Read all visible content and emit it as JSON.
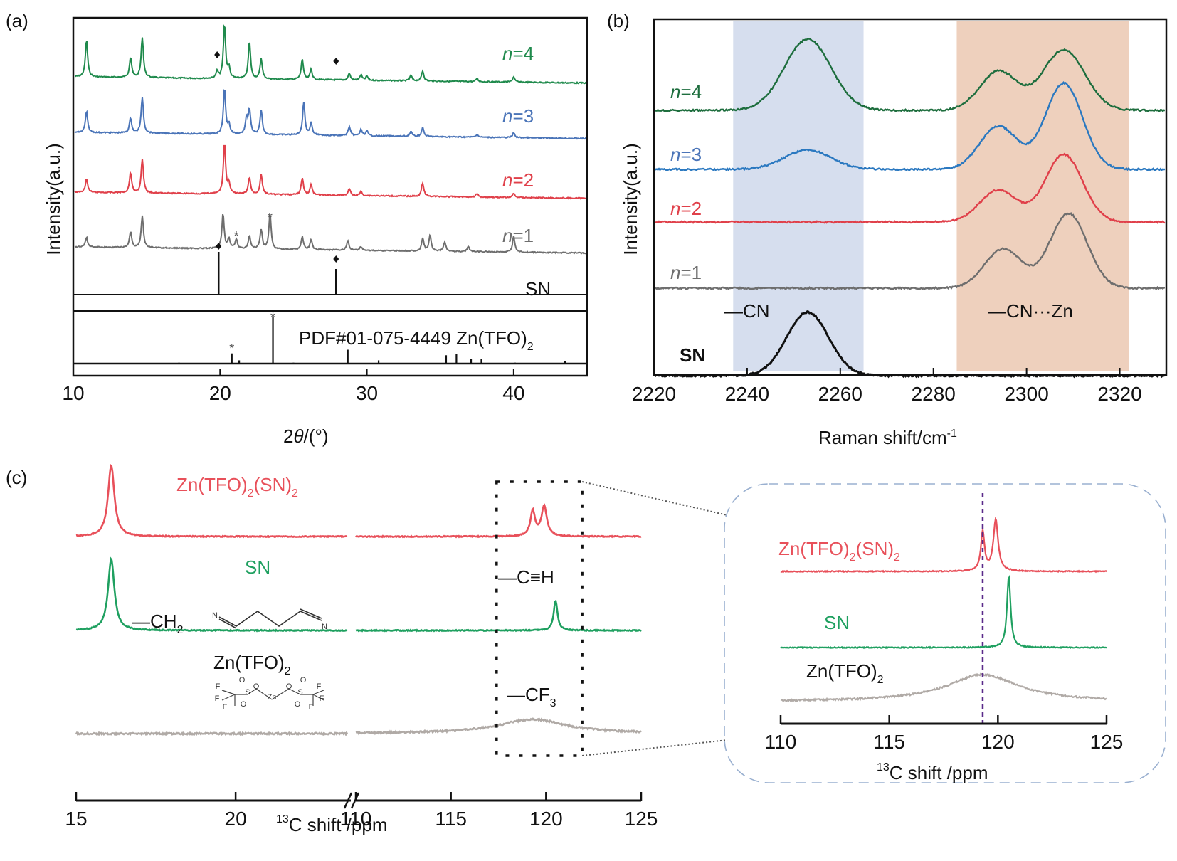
{
  "figure": {
    "panels": [
      "(a)",
      "(b)",
      "(c)"
    ]
  },
  "colors": {
    "n4": "#1f8a4c",
    "n3": "#4a74b8",
    "n2": "#e0404a",
    "n1": "#6e6e6e",
    "sn_raman": "#111111",
    "n4_raman": "#1e6e3e",
    "n3_raman": "#2a78c0",
    "nmr_red": "#e8505a",
    "nmr_green": "#1fa060",
    "nmr_gray": "#b0aaa6",
    "band_blue": "#d6deee",
    "band_orange": "#eed0bd",
    "inset_border": "#9ab0d0",
    "dashed_line": "#5a2a8a"
  },
  "chart_data": [
    {
      "panel": "(a)",
      "type": "line",
      "title": "",
      "xlabel": "2θ/(°)",
      "xlabel_parts": [
        "2",
        "θ",
        "/(°)"
      ],
      "ylabel": "Intensity(a.u.)",
      "xlim": [
        10,
        45
      ],
      "xticks": [
        10,
        20,
        30,
        40
      ],
      "series": [
        {
          "name": "n=4",
          "n_label": "n",
          "eq": "=4",
          "color_key": "n4",
          "peaks": [
            [
              10.9,
              0.55
            ],
            [
              13.9,
              0.3
            ],
            [
              14.7,
              0.6
            ],
            [
              19.8,
              0.1
            ],
            [
              20.3,
              0.8
            ],
            [
              20.6,
              0.15
            ],
            [
              22.0,
              0.55
            ],
            [
              22.8,
              0.3
            ],
            [
              25.6,
              0.3
            ],
            [
              26.2,
              0.15
            ],
            [
              28.8,
              0.1
            ],
            [
              29.6,
              0.08
            ],
            [
              30.0,
              0.06
            ],
            [
              33.0,
              0.08
            ],
            [
              33.8,
              0.15
            ],
            [
              37.5,
              0.05
            ],
            [
              40.0,
              0.08
            ]
          ]
        },
        {
          "name": "n=3",
          "n_label": "n",
          "eq": "=3",
          "color_key": "n3",
          "peaks": [
            [
              10.9,
              0.35
            ],
            [
              13.9,
              0.25
            ],
            [
              14.7,
              0.6
            ],
            [
              20.3,
              0.75
            ],
            [
              20.6,
              0.15
            ],
            [
              21.8,
              0.25
            ],
            [
              22.0,
              0.4
            ],
            [
              22.8,
              0.4
            ],
            [
              25.7,
              0.55
            ],
            [
              26.2,
              0.2
            ],
            [
              28.8,
              0.15
            ],
            [
              29.6,
              0.1
            ],
            [
              30.0,
              0.08
            ],
            [
              33.0,
              0.08
            ],
            [
              33.8,
              0.15
            ],
            [
              37.5,
              0.05
            ],
            [
              40.0,
              0.08
            ]
          ]
        },
        {
          "name": "n=2",
          "n_label": "n",
          "eq": "=2",
          "color_key": "n2",
          "peaks": [
            [
              10.9,
              0.2
            ],
            [
              13.9,
              0.3
            ],
            [
              14.7,
              0.5
            ],
            [
              20.3,
              0.75
            ],
            [
              20.6,
              0.15
            ],
            [
              22.0,
              0.25
            ],
            [
              22.8,
              0.3
            ],
            [
              25.6,
              0.25
            ],
            [
              26.2,
              0.15
            ],
            [
              28.8,
              0.1
            ],
            [
              29.6,
              0.06
            ],
            [
              33.8,
              0.2
            ],
            [
              37.5,
              0.05
            ],
            [
              40.0,
              0.06
            ]
          ]
        },
        {
          "name": "n=1",
          "n_label": "n",
          "eq": "=1",
          "color_key": "n1",
          "peaks": [
            [
              10.9,
              0.15
            ],
            [
              13.9,
              0.25
            ],
            [
              14.7,
              0.5
            ],
            [
              20.2,
              0.55
            ],
            [
              20.6,
              0.15
            ],
            [
              21.1,
              0.15
            ],
            [
              22.0,
              0.2
            ],
            [
              22.8,
              0.3
            ],
            [
              23.4,
              0.55
            ],
            [
              25.6,
              0.2
            ],
            [
              26.2,
              0.15
            ],
            [
              28.7,
              0.15
            ],
            [
              29.6,
              0.06
            ],
            [
              33.8,
              0.2
            ],
            [
              34.3,
              0.25
            ],
            [
              35.3,
              0.15
            ],
            [
              36.9,
              0.08
            ],
            [
              40.0,
              0.25
            ]
          ]
        }
      ],
      "reference_SN": {
        "label": "SN",
        "sticks": [
          [
            19.9,
            1.0
          ],
          [
            27.9,
            0.6
          ]
        ],
        "markers": "diamond"
      },
      "reference_PDF": {
        "label_prefix": "PDF#01-075-4449 Zn(TFO)",
        "label_sub": "2",
        "sticks": [
          [
            17.2,
            0.02
          ],
          [
            20.8,
            0.22
          ],
          [
            21.3,
            0.07
          ],
          [
            23.6,
            1.0
          ],
          [
            25.0,
            0.02
          ],
          [
            28.7,
            0.3
          ],
          [
            30.8,
            0.07
          ],
          [
            35.4,
            0.18
          ],
          [
            36.1,
            0.2
          ],
          [
            37.1,
            0.1
          ],
          [
            37.8,
            0.1
          ],
          [
            40.1,
            0.02
          ],
          [
            43.5,
            0.06
          ]
        ],
        "markers": "asterisk"
      },
      "markers": {
        "diamond_n4": [
          19.8,
          27.9
        ],
        "asterisk_n1": [
          21.1,
          23.4
        ],
        "asterisk_pdf": [
          20.8,
          23.6
        ]
      }
    },
    {
      "panel": "(b)",
      "type": "line",
      "xlabel": "Raman shift/cm",
      "xlabel_sup": "-1",
      "ylabel": "Intensity(a.u.)",
      "xlim": [
        2220,
        2330
      ],
      "xticks": [
        2220,
        2240,
        2260,
        2280,
        2300,
        2320
      ],
      "bands": [
        {
          "label": "—CN",
          "range": [
            2237,
            2265
          ],
          "color_key": "band_blue"
        },
        {
          "label": "—CN···Zn",
          "range": [
            2285,
            2322
          ],
          "color_key": "band_orange"
        }
      ],
      "series": [
        {
          "name": "n=4",
          "n_label": "n",
          "eq": "=4",
          "color_key": "n4_raman",
          "peaks": [
            [
              2253,
              1.0,
              5
            ],
            [
              2294,
              0.55,
              4
            ],
            [
              2308,
              0.85,
              4.5
            ]
          ]
        },
        {
          "name": "n=3",
          "n_label": "n",
          "eq": "=3",
          "color_key": "n3_raman",
          "peaks": [
            [
              2253,
              0.25,
              5
            ],
            [
              2294,
              0.55,
              4
            ],
            [
              2308,
              1.1,
              4
            ]
          ]
        },
        {
          "name": "n=2",
          "n_label": "n",
          "eq": "=2",
          "color_key": "n2",
          "peaks": [
            [
              2294,
              0.45,
              4
            ],
            [
              2308,
              0.95,
              4
            ]
          ]
        },
        {
          "name": "n=1",
          "n_label": "n",
          "eq": "=1",
          "color_key": "n1",
          "peaks": [
            [
              2295,
              0.55,
              4
            ],
            [
              2309,
              1.05,
              4
            ]
          ]
        },
        {
          "name": "SN",
          "n_label": "",
          "eq": "SN",
          "color_key": "sn_raman",
          "peaks": [
            [
              2253,
              1.05,
              4.5
            ]
          ]
        }
      ]
    },
    {
      "panel": "(c)",
      "type": "line",
      "xlabel_sup": "13",
      "xlabel": "C shift /ppm",
      "xticks_left": [
        15,
        20
      ],
      "xticks_right": [
        110,
        115,
        120,
        125
      ],
      "xlim_left": [
        15,
        23.5
      ],
      "xlim_right": [
        110,
        125
      ],
      "series": [
        {
          "name": "Zn(TFO)2(SN)2",
          "label_parts": [
            "Zn(TFO)",
            "2",
            "(SN)",
            "2"
          ],
          "color_key": "nmr_red",
          "peaks": [
            [
              16.1,
              1.0,
              0.12
            ],
            [
              119.3,
              0.35,
              0.15
            ],
            [
              119.9,
              0.42,
              0.17
            ]
          ]
        },
        {
          "name": "SN",
          "label_parts": [
            "SN"
          ],
          "color_key": "nmr_green",
          "peaks": [
            [
              16.1,
              1.0,
              0.12
            ],
            [
              120.5,
              0.42,
              0.12
            ]
          ]
        },
        {
          "name": "Zn(TFO)2",
          "label_parts": [
            "Zn(TFO)",
            "2"
          ],
          "color_key": "nmr_gray",
          "peaks": [
            [
              119.3,
              0.2,
              2.2
            ]
          ]
        }
      ],
      "annotations": [
        {
          "text": "—CH",
          "sub": "2"
        },
        {
          "text": "—C≡H",
          "sub": ""
        },
        {
          "text": "—CF",
          "sub": "3"
        }
      ],
      "zoom_box_range": [
        117.4,
        121.9
      ],
      "inset": {
        "xlim": [
          110,
          125
        ],
        "xticks": [
          110,
          115,
          120,
          125
        ],
        "xlabel_sup": "13",
        "xlabel": "C shift /ppm",
        "reference_line": 119.3,
        "series": [
          {
            "name": "Zn(TFO)2(SN)2",
            "label_parts": [
              "Zn(TFO)",
              "2",
              "(SN)",
              "2"
            ],
            "color_key": "nmr_red",
            "peaks": [
              [
                119.3,
                0.65,
                0.1
              ],
              [
                119.9,
                0.85,
                0.13
              ]
            ]
          },
          {
            "name": "SN",
            "label_parts": [
              "SN"
            ],
            "color_key": "nmr_green",
            "peaks": [
              [
                120.5,
                1.0,
                0.1
              ]
            ]
          },
          {
            "name": "Zn(TFO)2",
            "label_parts": [
              "Zn(TFO)",
              "2"
            ],
            "color_key": "nmr_gray",
            "peaks": [
              [
                119.3,
                0.38,
                2.0
              ]
            ]
          }
        ]
      },
      "molecules": {
        "sn_atoms": [
          "N",
          "N"
        ],
        "tfo_atoms": [
          "O",
          "O",
          "S",
          "O",
          "Zn",
          "O",
          "S",
          "O",
          "O",
          "F",
          "F",
          "F",
          "F",
          "F",
          "F"
        ]
      }
    }
  ]
}
